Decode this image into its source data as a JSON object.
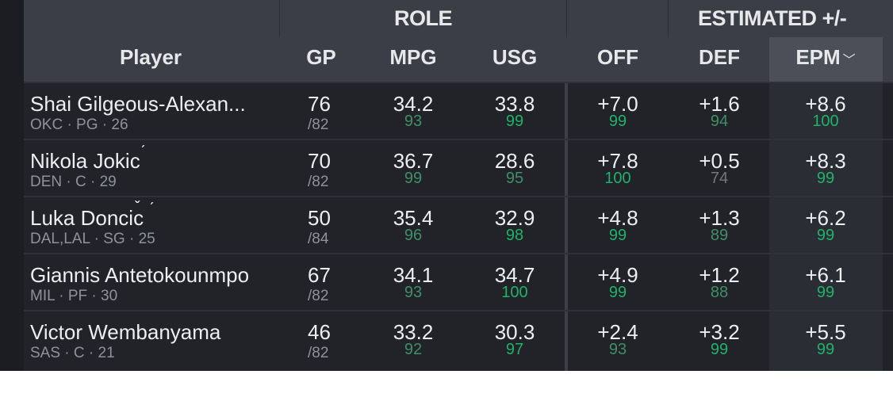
{
  "groups": {
    "role": "ROLE",
    "estimated": "ESTIMATED +/-"
  },
  "headers": {
    "player": "Player",
    "gp": "GP",
    "mpg": "MPG",
    "usg": "USG",
    "off": "OFF",
    "def": "DEF",
    "epm": "EPM",
    "sort_icon": "chevron-down-icon"
  },
  "colors": {
    "pct_high": "#1db46a",
    "pct_mid": "#3f8f66",
    "pct_low": "#6f7a76"
  },
  "rows": [
    {
      "name": "Shai Gilgeous-Alexan...",
      "meta": "OKC · PG · 26",
      "gp": "76",
      "gp_total": "/82",
      "mpg": "34.2",
      "mpg_pct": "93",
      "usg": "33.8",
      "usg_pct": "99",
      "off": "+7.0",
      "off_pct": "99",
      "def": "+1.6",
      "def_pct": "94",
      "epm": "+8.6",
      "epm_pct": "100"
    },
    {
      "name": "Nikola Jokic",
      "meta": "DEN · C · 29",
      "gp": "70",
      "gp_total": "/82",
      "mpg": "36.7",
      "mpg_pct": "99",
      "usg": "28.6",
      "usg_pct": "95",
      "off": "+7.8",
      "off_pct": "100",
      "def": "+0.5",
      "def_pct": "74",
      "epm": "+8.3",
      "epm_pct": "99"
    },
    {
      "name": "Luka Doncic",
      "meta": "DAL,LAL · SG · 25",
      "gp": "50",
      "gp_total": "/84",
      "mpg": "35.4",
      "mpg_pct": "96",
      "usg": "32.9",
      "usg_pct": "98",
      "off": "+4.8",
      "off_pct": "99",
      "def": "+1.3",
      "def_pct": "89",
      "epm": "+6.2",
      "epm_pct": "99"
    },
    {
      "name": "Giannis Antetokounmpo",
      "meta": "MIL · PF · 30",
      "gp": "67",
      "gp_total": "/82",
      "mpg": "34.1",
      "mpg_pct": "93",
      "usg": "34.7",
      "usg_pct": "100",
      "off": "+4.9",
      "off_pct": "99",
      "def": "+1.2",
      "def_pct": "88",
      "epm": "+6.1",
      "epm_pct": "99"
    },
    {
      "name": "Victor Wembanyama",
      "meta": "SAS · C · 21",
      "gp": "46",
      "gp_total": "/82",
      "mpg": "33.2",
      "mpg_pct": "92",
      "usg": "30.3",
      "usg_pct": "97",
      "off": "+2.4",
      "off_pct": "93",
      "def": "+3.2",
      "def_pct": "99",
      "epm": "+5.5",
      "epm_pct": "99"
    }
  ]
}
